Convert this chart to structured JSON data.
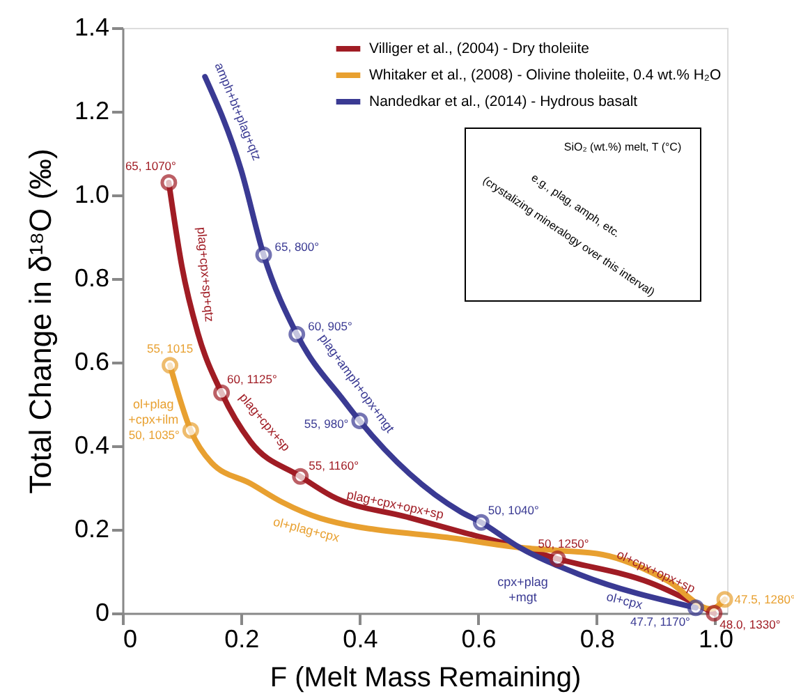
{
  "chart_data": {
    "type": "line",
    "xlabel": "F (Melt Mass Remaining)",
    "ylabel": "Total Change in δ¹⁸O (‰)",
    "xlim": [
      0,
      1.02
    ],
    "ylim": [
      0,
      1.4
    ],
    "xticks": [
      {
        "value": 0,
        "label": "0"
      },
      0.2,
      0.4,
      0.6,
      0.8,
      {
        "value": 1,
        "label": "1.0"
      }
    ],
    "yticks": [
      {
        "value": 0,
        "label": "0"
      },
      0.2,
      0.4,
      0.6,
      0.8,
      {
        "value": 1,
        "label": "1.0"
      },
      1.2,
      1.4
    ],
    "grid": false,
    "legend": "top right",
    "marker": "none",
    "line_style": "solid",
    "series": [
      {
        "name": "Villiger et al., (2004) - Dry tholeiite",
        "color": "#a01c24",
        "x": [
          0.078,
          0.1,
          0.127,
          0.167,
          0.216,
          0.3,
          0.353,
          0.48,
          0.57,
          0.67,
          0.734,
          0.89,
          0.998
        ],
        "values": [
          1.03,
          0.83,
          0.67,
          0.527,
          0.41,
          0.327,
          0.28,
          0.23,
          0.195,
          0.157,
          0.13,
          0.073,
          0.0
        ]
      },
      {
        "name": "Whitaker et al., (2008) - Olivine tholeiite, 0.4 wt.% H₂O",
        "color": "#e8a030",
        "x": [
          0.08,
          0.115,
          0.15,
          0.216,
          0.27,
          0.334,
          0.57,
          0.67,
          0.734,
          0.81,
          0.92,
          0.993,
          1.016
        ],
        "values": [
          0.593,
          0.437,
          0.36,
          0.31,
          0.265,
          0.227,
          0.177,
          0.157,
          0.15,
          0.14,
          0.077,
          0.01,
          0.033
        ]
      },
      {
        "name": "Nandedkar et al., (2014) - Hydrous basalt",
        "color": "#3a3a93",
        "x": [
          0.139,
          0.2,
          0.238,
          0.294,
          0.374,
          0.4,
          0.57,
          0.605,
          0.67,
          0.77,
          0.967
        ],
        "values": [
          1.283,
          1.06,
          0.857,
          0.667,
          0.507,
          0.46,
          0.243,
          0.217,
          0.157,
          0.093,
          0.013
        ]
      },
      {
        "color": "#a01c24",
        "type": "scatter",
        "marker": "circle",
        "x": [
          0.078,
          0.167,
          0.3,
          0.734,
          0.998
        ],
        "values": [
          1.03,
          0.527,
          0.327,
          0.13,
          0.0
        ],
        "value_labels": [
          "65, 1070°",
          "60, 1125°",
          "55, 1160°",
          "50, 1250°",
          "48.0, 1330°"
        ]
      },
      {
        "color": "#e8a030",
        "type": "scatter",
        "marker": "circle",
        "x": [
          0.08,
          0.115,
          1.016
        ],
        "values": [
          0.593,
          0.437,
          0.033
        ],
        "value_labels": [
          "55, 1015",
          "50, 1035°",
          "47.5, 1280°"
        ]
      },
      {
        "color": "#3a3a93",
        "type": "scatter",
        "marker": "circle",
        "x": [
          0.238,
          0.294,
          0.4,
          0.605,
          0.967
        ],
        "values": [
          0.857,
          0.667,
          0.46,
          0.217,
          0.013
        ],
        "value_labels": [
          "65, 800°",
          "60, 905°",
          "55, 980°",
          "50, 1040°",
          "47.7, 1170°"
        ]
      }
    ],
    "annotations": [
      "amph+bt+plag+qtz",
      "plag+cpx+sp+qtz",
      "plag+cpx+sp",
      "plag+cpx+opx+sp",
      "ol+cpx+opx+sp",
      "ol+plag+cpx",
      "ol+plag\n+cpx+ilm",
      "plag+amph+opx+mgt",
      "cpx+plag\n+mgt",
      "ol+cpx",
      "SiO₂ (wt.%) melt, T (°C)",
      "e.g., plag, amph, etc.",
      "(crystalizing mineralogy over this interval)"
    ]
  }
}
